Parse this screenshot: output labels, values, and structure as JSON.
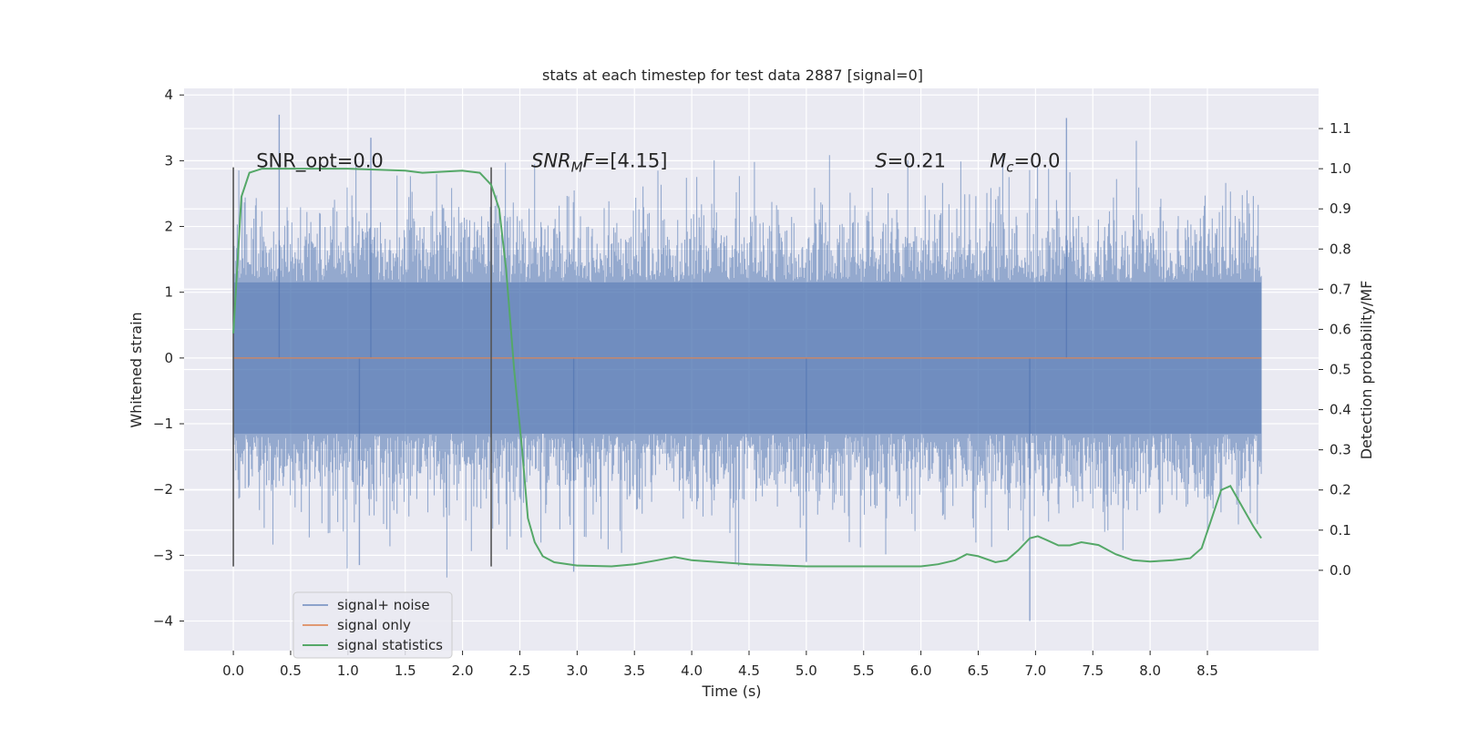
{
  "chart_data": {
    "type": "line",
    "title": "stats at each timestep for test data 2887 [signal=0]",
    "xlabel": "Time (s)",
    "ylabel": "Whitened strain",
    "y2label": "Detection probability/MF",
    "xlim": [
      -0.43,
      9.47
    ],
    "ylim": [
      -4.45,
      4.1
    ],
    "y2lim": [
      -0.2,
      1.2
    ],
    "xticks": [
      "0.0",
      "0.5",
      "1.0",
      "1.5",
      "2.0",
      "2.5",
      "3.0",
      "3.5",
      "4.0",
      "4.5",
      "5.0",
      "5.5",
      "6.0",
      "6.5",
      "7.0",
      "7.5",
      "8.0",
      "8.5"
    ],
    "yticks": [
      "4",
      "3",
      "2",
      "1",
      "0",
      "−1",
      "−2",
      "−3",
      "−4"
    ],
    "y2ticks": [
      "1.1",
      "1.0",
      "0.9",
      "0.8",
      "0.7",
      "0.6",
      "0.5",
      "0.4",
      "0.3",
      "0.2",
      "0.1",
      "0.0"
    ],
    "grid": true,
    "legend_position": "lower-left",
    "colors": {
      "noise": "#4c72b0",
      "signal_only": "#dd8452",
      "statistics": "#55a868",
      "marker": "#555555",
      "plot_bg": "#eaeaf2",
      "grid": "#ffffff"
    },
    "annotations": [
      {
        "text": "SNR_opt=0.0",
        "x": 0.2,
        "y": 3.0
      },
      {
        "math": "SNR_MF",
        "text": "=[4.15]",
        "x": 2.6,
        "y": 3.0
      },
      {
        "math": "S",
        "text": "=0.21",
        "x": 5.6,
        "y": 3.0
      },
      {
        "math": "M_c",
        "text": "=0.0",
        "x": 6.6,
        "y": 3.0
      }
    ],
    "vertical_markers": [
      {
        "x": 0.0,
        "ymin": -3.17,
        "ymax": 2.9
      },
      {
        "x": 2.25,
        "ymin": -3.17,
        "ymax": 2.9
      }
    ],
    "series": [
      {
        "name": "signal+ noise",
        "kind": "noise",
        "x_range": [
          0.0,
          8.97
        ],
        "band": 1.15,
        "spikes": [
          [
            0.4,
            3.7
          ],
          [
            1.2,
            3.35
          ],
          [
            7.27,
            3.65
          ],
          [
            6.95,
            -4.0
          ],
          [
            1.1,
            -3.15
          ],
          [
            2.97,
            -3.25
          ],
          [
            5.0,
            -3.1
          ]
        ]
      },
      {
        "name": "signal only",
        "kind": "flat",
        "x": [
          0.0,
          8.97
        ],
        "y": [
          0.0,
          0.0
        ]
      },
      {
        "name": "signal statistics",
        "kind": "line",
        "axis": "right",
        "x": [
          0.0,
          0.07,
          0.14,
          0.25,
          0.5,
          1.0,
          1.5,
          1.65,
          2.0,
          2.15,
          2.25,
          2.32,
          2.38,
          2.45,
          2.52,
          2.57,
          2.63,
          2.7,
          2.8,
          3.0,
          3.3,
          3.5,
          3.7,
          3.85,
          4.0,
          4.5,
          5.0,
          5.5,
          6.0,
          6.15,
          6.3,
          6.4,
          6.5,
          6.65,
          6.75,
          6.85,
          6.95,
          7.02,
          7.1,
          7.2,
          7.3,
          7.4,
          7.55,
          7.7,
          7.85,
          8.0,
          8.2,
          8.35,
          8.45,
          8.55,
          8.62,
          8.7,
          8.8,
          8.9,
          8.97
        ],
        "y": [
          0.59,
          0.93,
          0.99,
          1.0,
          1.0,
          1.0,
          0.995,
          0.99,
          0.995,
          0.99,
          0.96,
          0.9,
          0.75,
          0.5,
          0.3,
          0.13,
          0.07,
          0.035,
          0.02,
          0.012,
          0.01,
          0.015,
          0.025,
          0.033,
          0.025,
          0.015,
          0.01,
          0.01,
          0.01,
          0.015,
          0.025,
          0.04,
          0.035,
          0.02,
          0.025,
          0.05,
          0.08,
          0.085,
          0.075,
          0.062,
          0.062,
          0.07,
          0.063,
          0.04,
          0.025,
          0.022,
          0.025,
          0.03,
          0.055,
          0.14,
          0.2,
          0.21,
          0.16,
          0.11,
          0.08
        ]
      }
    ]
  }
}
